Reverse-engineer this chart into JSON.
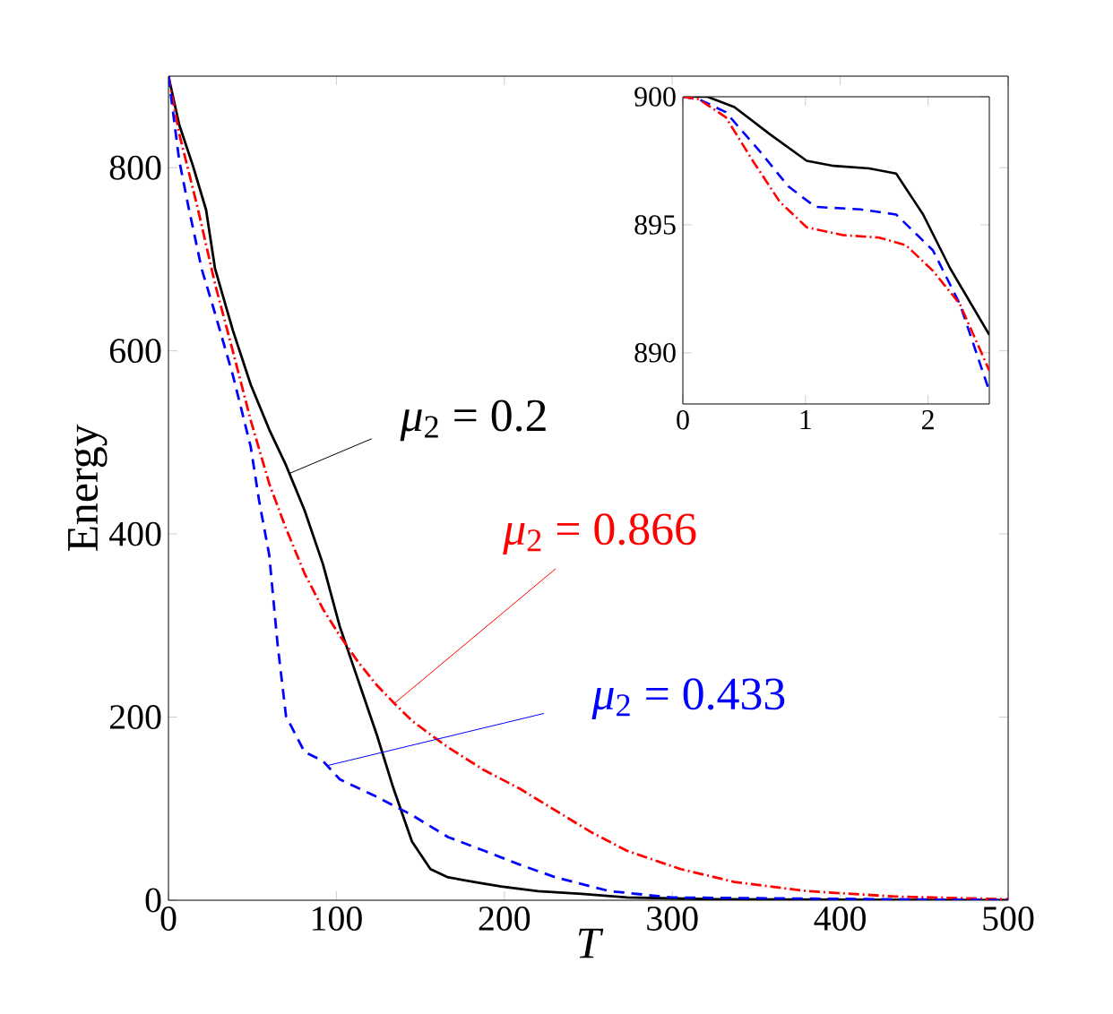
{
  "chart_data": [
    {
      "type": "line",
      "xlabel": "T",
      "ylabel": "Energy",
      "xlim": [
        0,
        500
      ],
      "ylim": [
        0,
        900
      ],
      "xticks": [
        0,
        100,
        200,
        300,
        400,
        500
      ],
      "yticks": [
        0,
        200,
        400,
        600,
        800
      ],
      "grid": false,
      "series": [
        {
          "name": "*μ*$_{2}$ = 0.2",
          "color": "#000000",
          "line_style": "solid",
          "x": [
            0,
            6.4,
            14.4,
            22.4,
            27.7,
            38.4,
            49,
            60,
            70,
            81,
            92,
            102,
            113,
            124,
            134,
            145,
            156,
            166.5,
            182,
            198,
            220,
            246,
            273,
            327,
            500
          ],
          "values": [
            900,
            847,
            803,
            754,
            690,
            622,
            563,
            514,
            475,
            426,
            367,
            299,
            240,
            181,
            122,
            64,
            34,
            25,
            20,
            15,
            10,
            7,
            3,
            1,
            0
          ]
        },
        {
          "name": "*μ*$_{2}$ = 0.866",
          "color": "#ff0000",
          "line_style": "dashdot",
          "x": [
            0,
            6.4,
            17,
            28,
            38,
            49,
            60,
            70,
            81,
            92,
            102,
            113,
            124,
            134.5,
            145,
            156,
            166.5,
            188,
            209,
            230.5,
            252,
            273,
            305,
            337,
            380,
            433,
            500
          ],
          "values": [
            900,
            837,
            759,
            671,
            602,
            524,
            455,
            406,
            357,
            318,
            289,
            260,
            235,
            215,
            196,
            181,
            167,
            142,
            122,
            98,
            74,
            54,
            34,
            20,
            10,
            4,
            1
          ]
        },
        {
          "name": "*μ*$_{2}$ = 0.433",
          "color": "#0000ff",
          "line_style": "dashed",
          "x": [
            0,
            6.4,
            11.7,
            19.7,
            27.7,
            38.4,
            49,
            54,
            60,
            65,
            70,
            81,
            92,
            102,
            124,
            145,
            166.5,
            188,
            209,
            230.5,
            262.5,
            300,
            500
          ],
          "values": [
            900,
            808,
            759,
            690,
            641,
            573,
            495,
            436,
            377,
            279,
            201,
            162,
            152,
            132,
            113,
            93,
            69,
            54,
            39,
            25,
            10,
            3,
            0
          ]
        }
      ]
    },
    {
      "type": "line",
      "xlim": [
        0,
        2.5
      ],
      "ylim": [
        888,
        900
      ],
      "xticks": [
        0,
        1,
        2
      ],
      "yticks": [
        890,
        895,
        900
      ],
      "grid": false,
      "series": [
        {
          "color": "#000000",
          "line_style": "solid",
          "x": [
            0,
            0.2,
            0.42,
            0.72,
            1.01,
            1.23,
            1.52,
            1.74,
            1.96,
            2.18,
            2.5
          ],
          "values": [
            900,
            900,
            899.6,
            898.5,
            897.5,
            897.3,
            897.2,
            897.0,
            895.4,
            893.3,
            890.7
          ]
        },
        {
          "color": "#0000ff",
          "line_style": "dashed",
          "x": [
            0,
            0.13,
            0.35,
            0.64,
            0.86,
            1.08,
            1.45,
            1.74,
            2.04,
            2.26,
            2.5
          ],
          "values": [
            900,
            899.9,
            899.4,
            897.8,
            896.5,
            895.7,
            895.6,
            895.4,
            894.0,
            891.9,
            888.5
          ]
        },
        {
          "color": "#ff0000",
          "line_style": "dashdot",
          "x": [
            0,
            0.13,
            0.35,
            0.57,
            0.79,
            1.01,
            1.3,
            1.6,
            1.82,
            2.04,
            2.26,
            2.5
          ],
          "values": [
            900,
            899.9,
            899.2,
            897.5,
            895.9,
            894.9,
            894.6,
            894.5,
            894.2,
            893.2,
            891.9,
            889.3
          ]
        }
      ]
    }
  ]
}
